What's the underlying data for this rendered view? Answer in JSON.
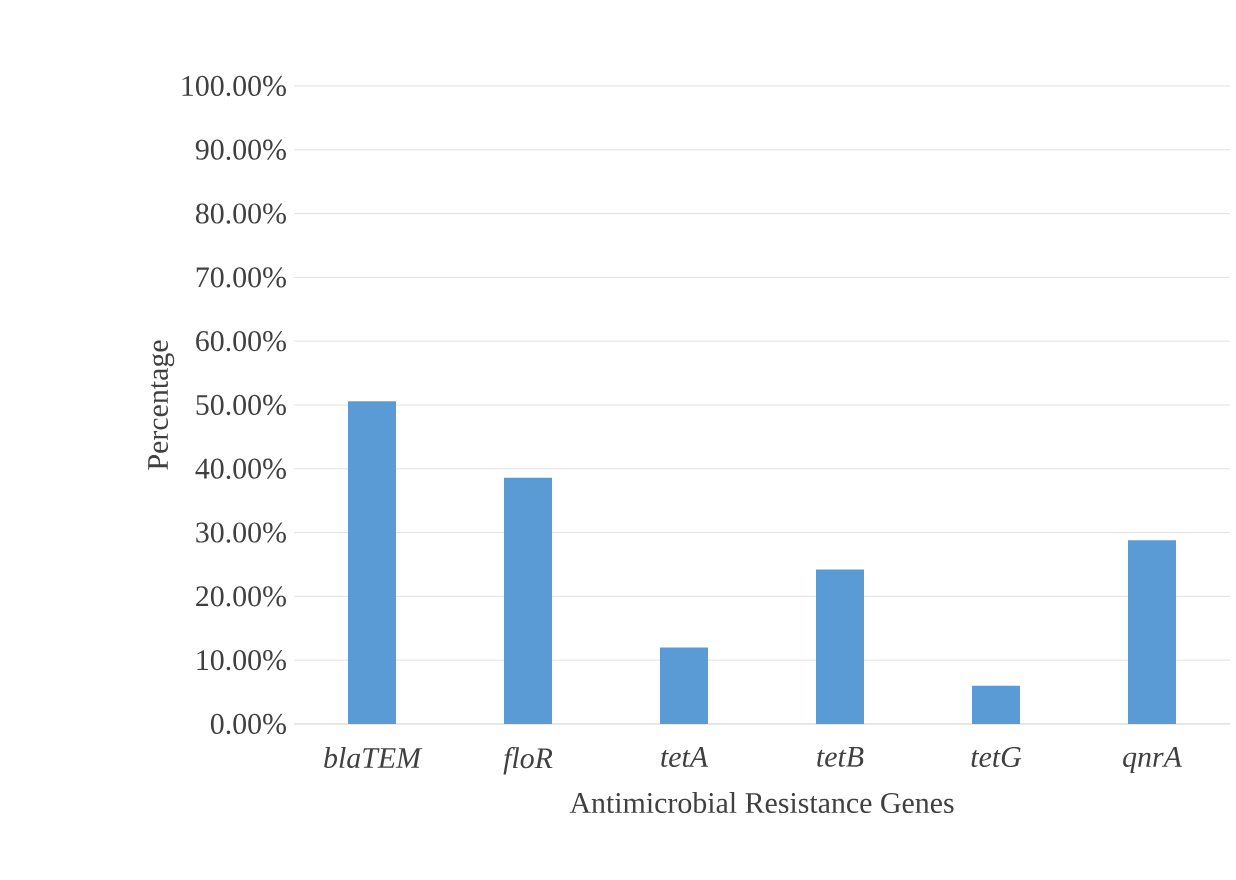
{
  "chart_data": {
    "type": "bar",
    "xlabel": "Antimicrobial Resistance Genes",
    "ylabel": "Percentage",
    "categories": [
      "blaTEM",
      "floR",
      "tetA",
      "tetB",
      "tetG",
      "qnrA"
    ],
    "values": [
      50.6,
      38.6,
      12.0,
      24.2,
      6.0,
      28.8
    ],
    "color": "#5b9bd5",
    "ylim": [
      0,
      100
    ],
    "yticks": [
      {
        "value": 0,
        "label": "0.00%"
      },
      {
        "value": 10,
        "label": "10.00%"
      },
      {
        "value": 20,
        "label": "20.00%"
      },
      {
        "value": 30,
        "label": "30.00%"
      },
      {
        "value": 40,
        "label": "40.00%"
      },
      {
        "value": 50,
        "label": "50.00%"
      },
      {
        "value": 60,
        "label": "60.00%"
      },
      {
        "value": 70,
        "label": "70.00%"
      },
      {
        "value": 80,
        "label": "80.00%"
      },
      {
        "value": 90,
        "label": "90.00%"
      },
      {
        "value": 100,
        "label": "100.00%"
      }
    ],
    "grid": "y"
  }
}
